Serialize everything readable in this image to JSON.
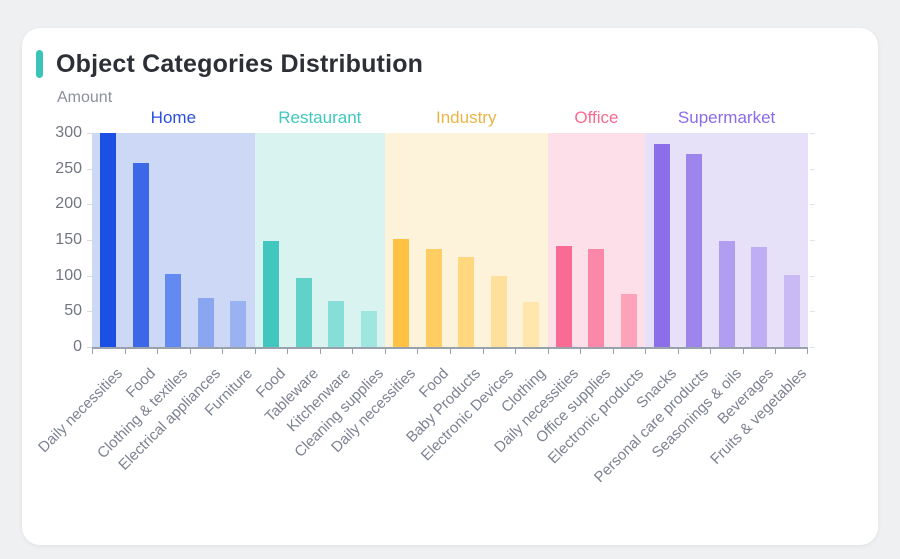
{
  "accent_color": "#3cc3b7",
  "chart_data": {
    "type": "bar",
    "title": "Object Categories Distribution",
    "xlabel": "",
    "ylabel": "Amount",
    "ylim": [
      0,
      300
    ],
    "yticks": [
      300,
      250,
      200,
      150,
      100,
      50,
      0
    ],
    "grid": false,
    "legend_position": "none",
    "group_bands": true,
    "groups": [
      {
        "name": "Home",
        "label_color": "#2b50e0",
        "band_color": "#cdd7f6",
        "bars": [
          {
            "label": "Daily necessities",
            "value": 300,
            "color": "#1a50e4"
          },
          {
            "label": "Food",
            "value": 258,
            "color": "#3c68e8"
          },
          {
            "label": "Clothing & textiles",
            "value": 102,
            "color": "#638af0"
          },
          {
            "label": "Electrical appliances",
            "value": 69,
            "color": "#8aa6f0"
          },
          {
            "label": "Furniture",
            "value": 64,
            "color": "#9ab1f2"
          }
        ]
      },
      {
        "name": "Restaurant",
        "label_color": "#3fc8bd",
        "band_color": "#d9f3f1",
        "bars": [
          {
            "label": "Food",
            "value": 149,
            "color": "#41c7bd"
          },
          {
            "label": "Tableware",
            "value": 97,
            "color": "#62d2c9"
          },
          {
            "label": "Kitchenware",
            "value": 65,
            "color": "#86ded7"
          },
          {
            "label": "Cleaning supplies",
            "value": 51,
            "color": "#9fe6e0"
          }
        ]
      },
      {
        "name": "Industry",
        "label_color": "#eab545",
        "band_color": "#fdf3da",
        "bars": [
          {
            "label": "Daily necessities",
            "value": 151,
            "color": "#ffc242"
          },
          {
            "label": "Food",
            "value": 138,
            "color": "#ffcd62"
          },
          {
            "label": "Baby Products",
            "value": 126,
            "color": "#ffd77e"
          },
          {
            "label": "Electronic Devices",
            "value": 99,
            "color": "#ffe09a"
          },
          {
            "label": "Clothing",
            "value": 63,
            "color": "#ffe6ad"
          }
        ]
      },
      {
        "name": "Office",
        "label_color": "#fa6a92",
        "band_color": "#fcdfe9",
        "bars": [
          {
            "label": "Daily necessities",
            "value": 142,
            "color": "#fa6b93"
          },
          {
            "label": "Office supplies",
            "value": 138,
            "color": "#fb88a8"
          },
          {
            "label": "Electronic products",
            "value": 75,
            "color": "#fda2bb"
          }
        ]
      },
      {
        "name": "Supermarket",
        "label_color": "#8a6ce6",
        "band_color": "#e6e1f9",
        "bars": [
          {
            "label": "Snacks",
            "value": 285,
            "color": "#8c6ee9"
          },
          {
            "label": "Personal care products",
            "value": 271,
            "color": "#9e85ec"
          },
          {
            "label": "Seasonings & oils",
            "value": 148,
            "color": "#b29ef1"
          },
          {
            "label": "Beverages",
            "value": 140,
            "color": "#bfaef3"
          },
          {
            "label": "Fruits & vegetables",
            "value": 101,
            "color": "#c9baf5"
          }
        ]
      }
    ]
  }
}
